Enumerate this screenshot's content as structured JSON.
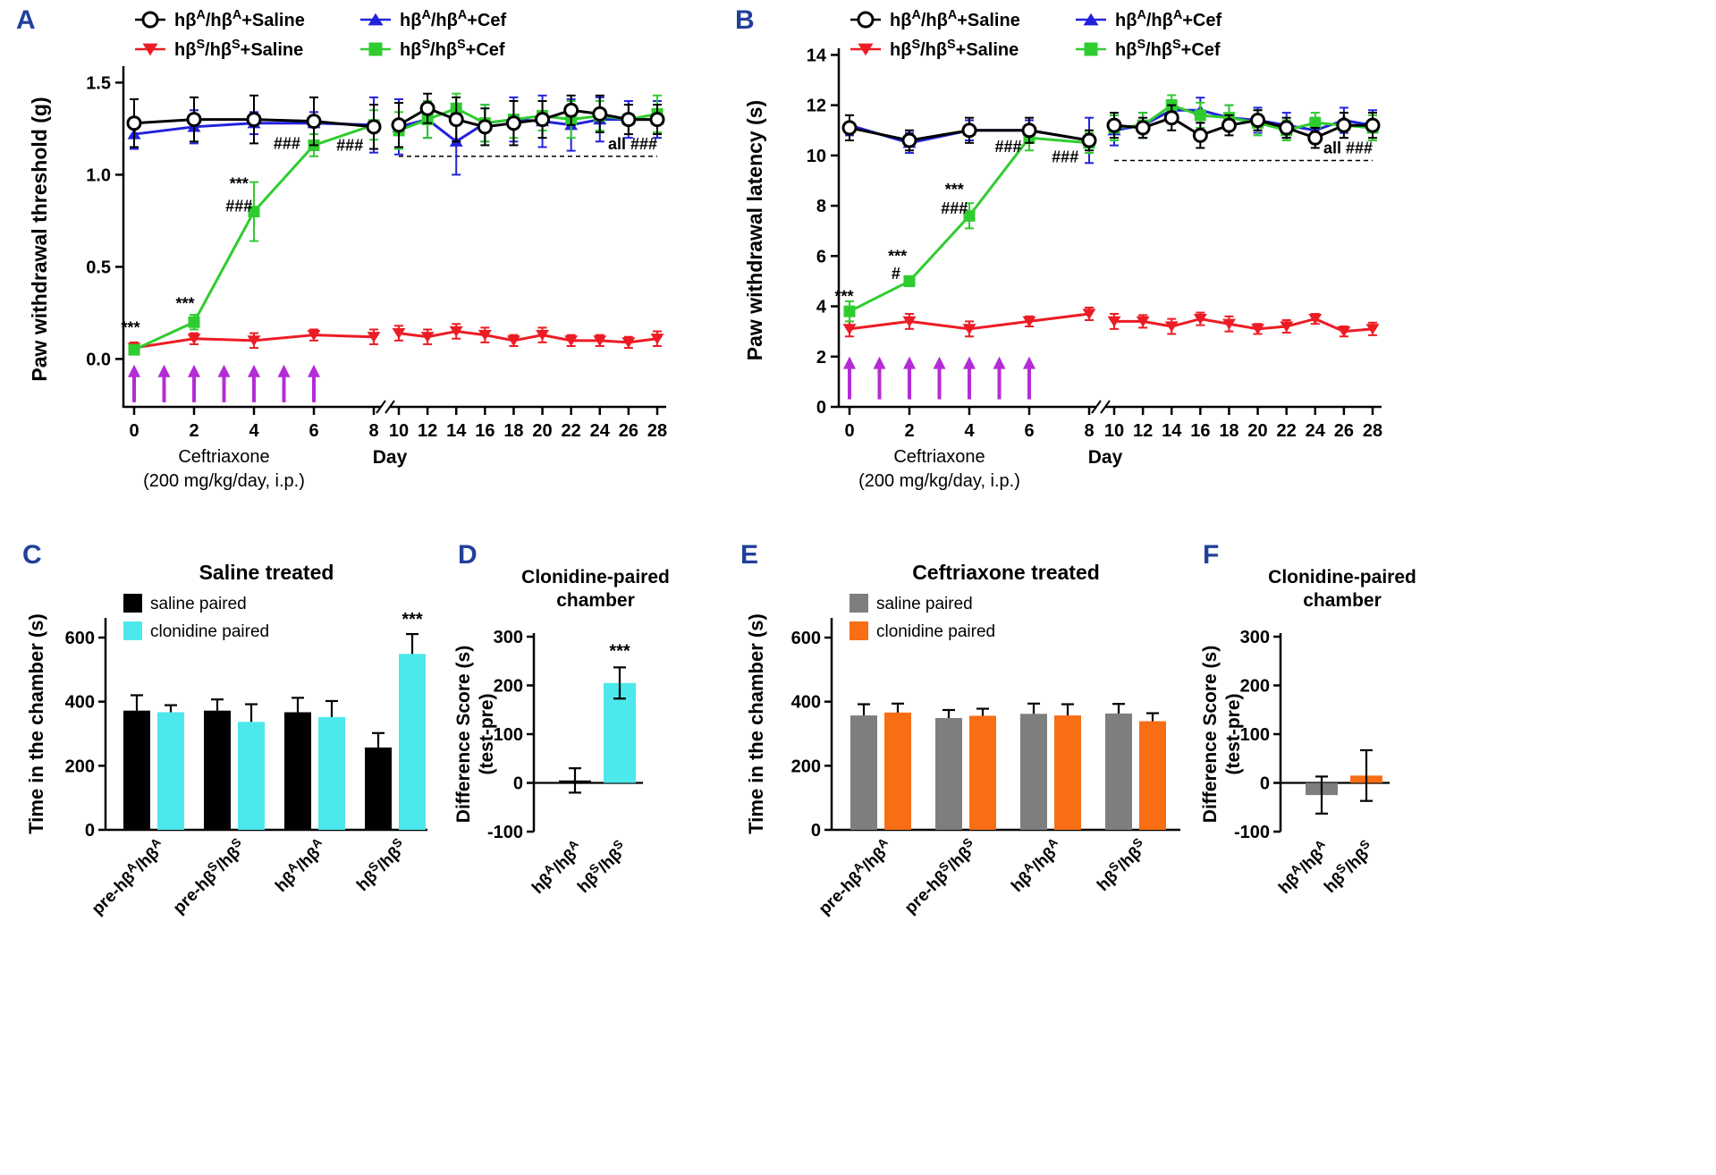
{
  "figure": {
    "background": "#ffffff",
    "panel_label_color": "#21409a",
    "colors": {
      "black": "#000000",
      "red": "#ec1c24",
      "blue": "#2222dd",
      "green": "#2fcc2f",
      "cyan": "#4de8ec",
      "orange": "#f86e15",
      "gray": "#7e7e7e",
      "purple": "#b42cd6",
      "white": "#ffffff"
    }
  },
  "chart_data": {
    "A": {
      "label": "A",
      "type": "line",
      "ylabel": "Paw withdrawal threshold (g)",
      "ylim": [
        -0.26,
        1.56
      ],
      "yticks": [
        {
          "v": 0,
          "t": "0.0"
        },
        {
          "v": 0.5,
          "t": "0.5"
        },
        {
          "v": 1.0,
          "t": "1.0"
        },
        {
          "v": 1.5,
          "t": "1.5"
        }
      ],
      "xlabel": "Day",
      "xticks1": [
        0,
        2,
        4,
        6,
        8
      ],
      "xticks2": [
        10,
        12,
        14,
        16,
        18,
        20,
        22,
        24,
        26,
        28
      ],
      "treatment": [
        "Ceftriaxone",
        "(200 mg/kg/day, i.p.)"
      ],
      "legend": [
        {
          "t": "hβA/hβA+Saline",
          "marker": "circle-open",
          "color": "black"
        },
        {
          "t": "hβS/hβS+Saline",
          "marker": "triangle-down",
          "color": "red"
        },
        {
          "t": "hβA/hβA+Cef",
          "marker": "triangle-up",
          "color": "blue"
        },
        {
          "t": "hβS/hβS+Cef",
          "marker": "square",
          "color": "green"
        }
      ],
      "days1": [
        0,
        2,
        4,
        6,
        8
      ],
      "days2": [
        10,
        12,
        14,
        16,
        18,
        20,
        22,
        24,
        26,
        28
      ],
      "series": [
        {
          "name": "hβA/hβA+Cef",
          "color": "blue",
          "marker": "triangle-up",
          "y1": [
            1.22,
            1.26,
            1.28,
            1.28,
            1.27
          ],
          "e1": [
            0.08,
            0.09,
            0.06,
            0.06,
            0.15
          ],
          "y2": [
            1.26,
            1.3,
            1.18,
            1.28,
            1.3,
            1.29,
            1.27,
            1.3,
            1.3,
            1.3
          ],
          "e2": [
            0.15,
            0.1,
            0.18,
            0.1,
            0.12,
            0.14,
            0.14,
            0.12,
            0.1,
            0.1
          ]
        },
        {
          "name": "hβS/hβS+Saline",
          "color": "red",
          "marker": "triangle-down",
          "y1": [
            0.06,
            0.11,
            0.1,
            0.13,
            0.12
          ],
          "e1": [
            0.03,
            0.03,
            0.04,
            0.03,
            0.04
          ],
          "y2": [
            0.14,
            0.12,
            0.15,
            0.13,
            0.1,
            0.13,
            0.1,
            0.1,
            0.09,
            0.11
          ],
          "e2": [
            0.04,
            0.04,
            0.04,
            0.04,
            0.03,
            0.04,
            0.03,
            0.03,
            0.03,
            0.04
          ]
        },
        {
          "name": "hβS/hβS+Cef",
          "color": "green",
          "marker": "square",
          "y1": [
            0.05,
            0.2,
            0.8,
            1.16,
            1.27
          ],
          "e1": [
            0.02,
            0.04,
            0.16,
            0.06,
            0.08
          ],
          "y2": [
            1.24,
            1.3,
            1.36,
            1.28,
            1.3,
            1.32,
            1.3,
            1.32,
            1.3,
            1.33
          ],
          "e2": [
            0.1,
            0.1,
            0.08,
            0.1,
            0.1,
            0.08,
            0.1,
            0.08,
            0.08,
            0.1
          ]
        },
        {
          "name": "hβA/hβA+Saline",
          "color": "black",
          "marker": "circle-open",
          "y1": [
            1.28,
            1.3,
            1.3,
            1.29,
            1.26
          ],
          "e1": [
            0.13,
            0.12,
            0.13,
            0.13,
            0.12
          ],
          "y2": [
            1.27,
            1.36,
            1.3,
            1.26,
            1.28,
            1.3,
            1.35,
            1.33,
            1.3,
            1.3
          ],
          "e2": [
            0.12,
            0.08,
            0.12,
            0.1,
            0.12,
            0.1,
            0.08,
            0.1,
            0.08,
            0.08
          ]
        }
      ],
      "annotations": [
        {
          "t": "***",
          "seg": 1,
          "d": 0,
          "y": 0.17,
          "dx": -4
        },
        {
          "t": "***",
          "seg": 1,
          "d": 1.7,
          "y": 0.3
        },
        {
          "t": "***",
          "seg": 1,
          "d": 3.5,
          "y": 0.95
        },
        {
          "t": "###",
          "seg": 1,
          "d": 3.5,
          "y": 0.83
        },
        {
          "t": "###",
          "seg": 1,
          "d": 5.1,
          "y": 1.17
        },
        {
          "t": "###",
          "seg": 1,
          "d": 7.2,
          "y": 1.16
        }
      ],
      "dash": {
        "y": 1.1,
        "d1": 10,
        "d2": 28,
        "t": "all ###"
      },
      "arrows": {
        "days": [
          0,
          1,
          2,
          3,
          4,
          5,
          6
        ],
        "y0": -0.235,
        "y1": -0.045
      }
    },
    "B": {
      "label": "B",
      "type": "line",
      "ylabel": "Paw withdrawal latency (s)",
      "ylim": [
        0,
        14.05
      ],
      "yticks": [
        {
          "v": 0,
          "t": "0"
        },
        {
          "v": 2,
          "t": "2"
        },
        {
          "v": 4,
          "t": "4"
        },
        {
          "v": 6,
          "t": "6"
        },
        {
          "v": 8,
          "t": "8"
        },
        {
          "v": 10,
          "t": "10"
        },
        {
          "v": 12,
          "t": "12"
        },
        {
          "v": 14,
          "t": "14"
        }
      ],
      "xlabel": "Day",
      "xticks1": [
        0,
        2,
        4,
        6,
        8
      ],
      "xticks2": [
        10,
        12,
        14,
        16,
        18,
        20,
        22,
        24,
        26,
        28
      ],
      "treatment": [
        "Ceftriaxone",
        "(200 mg/kg/day, i.p.)"
      ],
      "legend": [
        {
          "t": "hβA/hβA+Saline",
          "marker": "circle-open",
          "color": "black"
        },
        {
          "t": "hβS/hβS+Saline",
          "marker": "triangle-down",
          "color": "red"
        },
        {
          "t": "hβA/hβA+Cef",
          "marker": "triangle-up",
          "color": "blue"
        },
        {
          "t": "hβS/hβS+Cef",
          "marker": "square",
          "color": "green"
        }
      ],
      "days1": [
        0,
        2,
        4,
        6,
        8
      ],
      "days2": [
        10,
        12,
        14,
        16,
        18,
        20,
        22,
        24,
        26,
        28
      ],
      "series": [
        {
          "name": "hβA/hβA+Cef",
          "color": "blue",
          "marker": "triangle-up",
          "y1": [
            11.2,
            10.5,
            11.0,
            11.0,
            10.6
          ],
          "e1": [
            0.4,
            0.4,
            0.4,
            0.4,
            0.9
          ],
          "y2": [
            11.0,
            11.2,
            11.8,
            11.8,
            11.5,
            11.4,
            11.2,
            11.0,
            11.4,
            11.2
          ],
          "e2": [
            0.6,
            0.5,
            0.4,
            0.5,
            0.5,
            0.5,
            0.5,
            0.5,
            0.5,
            0.6
          ]
        },
        {
          "name": "hβS/hβS+Saline",
          "color": "red",
          "marker": "triangle-down",
          "y1": [
            3.1,
            3.4,
            3.1,
            3.4,
            3.7
          ],
          "e1": [
            0.3,
            0.3,
            0.3,
            0.2,
            0.25
          ],
          "y2": [
            3.4,
            3.4,
            3.2,
            3.5,
            3.3,
            3.1,
            3.2,
            3.5,
            3.0,
            3.1
          ],
          "e2": [
            0.3,
            0.25,
            0.3,
            0.25,
            0.3,
            0.2,
            0.25,
            0.2,
            0.2,
            0.25
          ]
        },
        {
          "name": "hβS/hβS+Cef",
          "color": "green",
          "marker": "square",
          "y1": [
            3.8,
            5.0,
            7.6,
            10.7,
            10.5
          ],
          "e1": [
            0.4,
            0.2,
            0.5,
            0.5,
            0.4
          ],
          "y2": [
            11.1,
            11.2,
            12.0,
            11.6,
            11.5,
            11.3,
            11.0,
            11.3,
            11.2,
            11.1
          ],
          "e2": [
            0.5,
            0.5,
            0.4,
            0.5,
            0.5,
            0.5,
            0.4,
            0.4,
            0.5,
            0.5
          ]
        },
        {
          "name": "hβA/hβA+Saline",
          "color": "black",
          "marker": "circle-open",
          "y1": [
            11.1,
            10.6,
            11.0,
            11.0,
            10.6
          ],
          "e1": [
            0.5,
            0.4,
            0.5,
            0.5,
            0.4
          ],
          "y2": [
            11.2,
            11.1,
            11.5,
            10.8,
            11.2,
            11.4,
            11.1,
            10.7,
            11.2,
            11.2
          ],
          "e2": [
            0.5,
            0.4,
            0.5,
            0.5,
            0.4,
            0.4,
            0.4,
            0.4,
            0.5,
            0.5
          ]
        }
      ],
      "annotations": [
        {
          "t": "***",
          "seg": 1,
          "d": 0,
          "y": 4.4,
          "dx": -6
        },
        {
          "t": "***",
          "seg": 1,
          "d": 1.6,
          "y": 6.0
        },
        {
          "t": "#",
          "seg": 1,
          "d": 1.55,
          "y": 5.3
        },
        {
          "t": "***",
          "seg": 1,
          "d": 3.5,
          "y": 8.65
        },
        {
          "t": "###",
          "seg": 1,
          "d": 3.5,
          "y": 7.9
        },
        {
          "t": "###",
          "seg": 1,
          "d": 5.3,
          "y": 10.35
        },
        {
          "t": "###",
          "seg": 1,
          "d": 7.2,
          "y": 9.95
        }
      ],
      "dash": {
        "y": 9.8,
        "d1": 10,
        "d2": 28,
        "t": "all ###"
      },
      "arrows": {
        "days": [
          0,
          1,
          2,
          3,
          4,
          5,
          6
        ],
        "y0": 0.3,
        "y1": 1.9
      }
    },
    "C": {
      "label": "C",
      "type": "grouped-bar",
      "title": "Saline treated",
      "ylabel": "Time in the chamber (s)",
      "ymax": 600,
      "yticks": [
        0,
        200,
        400,
        600
      ],
      "legend": [
        {
          "t": "saline paired",
          "color": "black"
        },
        {
          "t": "clonidine paired",
          "color": "cyan"
        }
      ],
      "categories": [
        "pre-hβA/hβA",
        "pre-hβS/hβS",
        "hβA/hβA",
        "hβS/hβS"
      ],
      "series": [
        {
          "name": "saline paired",
          "color": "black",
          "values": [
            372,
            372,
            367,
            257
          ],
          "errors": [
            48,
            35,
            45,
            45
          ]
        },
        {
          "name": "clonidine paired",
          "color": "cyan",
          "values": [
            367,
            337,
            352,
            549
          ],
          "errors": [
            22,
            55,
            50,
            62
          ]
        }
      ],
      "sig": [
        {
          "t": "***",
          "group": 3,
          "series": 1
        }
      ]
    },
    "D": {
      "label": "D",
      "type": "diff-bar",
      "title": [
        "Clonidine-paired",
        "chamber"
      ],
      "ylabel": [
        "Difference Score (s)",
        "(test-pre)"
      ],
      "ylim": [
        -100,
        300
      ],
      "yticks": [
        -100,
        0,
        100,
        200,
        300
      ],
      "categories": [
        "hβA/hβA",
        "hβS/hβS"
      ],
      "values": [
        5,
        205
      ],
      "errors": [
        25,
        32
      ],
      "colors": [
        "black",
        "cyan"
      ],
      "sig": [
        {
          "t": "***",
          "index": 1
        }
      ]
    },
    "E": {
      "label": "E",
      "type": "grouped-bar",
      "title": "Ceftriaxone treated",
      "ylabel": "Time in the chamber (s)",
      "ymax": 600,
      "yticks": [
        0,
        200,
        400,
        600
      ],
      "legend": [
        {
          "t": "saline paired",
          "color": "gray"
        },
        {
          "t": "clonidine paired",
          "color": "orange"
        }
      ],
      "categories": [
        "pre-hβA/hβA",
        "pre-hβS/hβS",
        "hβA/hβA",
        "hβS/hβS"
      ],
      "series": [
        {
          "name": "saline paired",
          "color": "gray",
          "values": [
            357,
            349,
            362,
            363
          ],
          "errors": [
            35,
            25,
            32,
            30
          ]
        },
        {
          "name": "clonidine paired",
          "color": "orange",
          "values": [
            366,
            356,
            357,
            339
          ],
          "errors": [
            28,
            22,
            35,
            25
          ]
        }
      ],
      "sig": []
    },
    "F": {
      "label": "F",
      "type": "diff-bar",
      "title": [
        "Clonidine-paired",
        "chamber"
      ],
      "ylabel": [
        "Difference Score (s)",
        "(test-pre)"
      ],
      "ylim": [
        -100,
        300
      ],
      "yticks": [
        -100,
        0,
        100,
        200,
        300
      ],
      "categories": [
        "hβA/hβA",
        "hβS/hβS"
      ],
      "values": [
        -25,
        15
      ],
      "errors": [
        38,
        52
      ],
      "colors": [
        "gray",
        "orange"
      ],
      "sig": []
    }
  }
}
